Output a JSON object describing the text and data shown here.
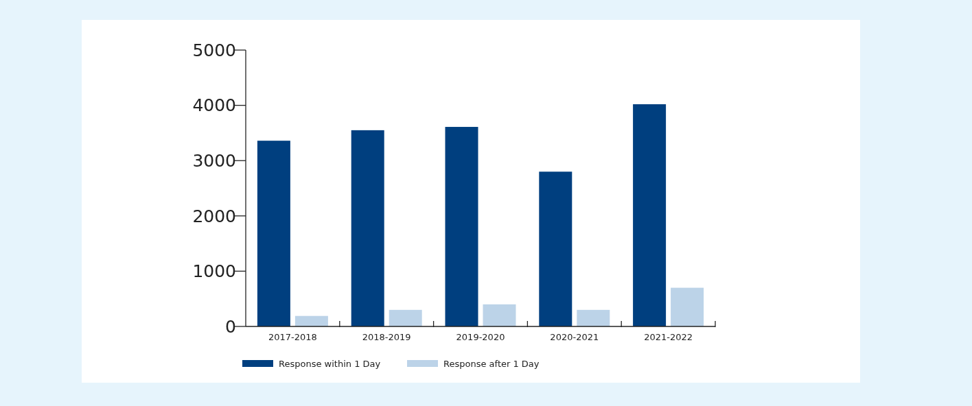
{
  "chart_data": {
    "type": "bar",
    "categories": [
      "2017-2018",
      "2018-2019",
      "2019-2020",
      "2020-2021",
      "2021-2022"
    ],
    "series": [
      {
        "name": "Response within 1 Day",
        "color": "#003f7f",
        "values": [
          3360,
          3550,
          3610,
          2800,
          4020
        ]
      },
      {
        "name": "Response after 1 Day",
        "color": "#bcd3e8",
        "values": [
          190,
          300,
          400,
          300,
          700
        ]
      }
    ],
    "ylim": [
      0,
      5000
    ],
    "yticks": [
      0,
      1000,
      2000,
      3000,
      4000,
      5000
    ],
    "grid": false,
    "legend": "bottom"
  }
}
